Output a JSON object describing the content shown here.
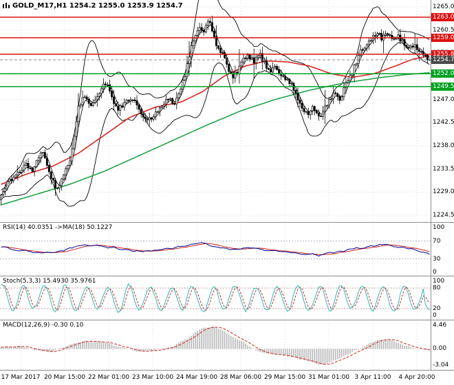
{
  "header": {
    "title": "GOLD_M17,H1 1254.2 1255.0 1253.9 1254.7",
    "symbol": "GOLD_M17",
    "period": "H1"
  },
  "palette": {
    "background": "#ffffff",
    "grid": "#d9d9d9",
    "candle": "#000000",
    "band": "#000000",
    "ma_fast": "#d92222",
    "ma_slow": "#1fa348",
    "resistance": "#dd1111",
    "support": "#00a020",
    "current_badge": "#4a4a4a",
    "rsi_line": "#00008b",
    "rsi_ma": "#cc2222",
    "rsi_level": "#b4b4c8",
    "stoch_k": "#2fb5b5",
    "stoch_d": "#cc2222",
    "stoch_level": "#cc9999",
    "macd_hist": "#bdbdbd",
    "macd_signal": "#cc2222",
    "separator": "#8a8a8a",
    "axis_text": "#000000"
  },
  "chart_data": {
    "type": "candlestick",
    "title": "GOLD_M17,H1",
    "symbol": "GOLD_M17",
    "period": "H1",
    "ohlc": {
      "open": 1254.2,
      "high": 1255.0,
      "low": 1253.9,
      "close": 1254.7
    },
    "y_axis": {
      "ticks": [
        1265.0,
        1260.5,
        1256.0,
        1251.5,
        1247.0,
        1242.5,
        1238.0,
        1233.5,
        1229.0,
        1224.5
      ]
    },
    "x_axis": {
      "labels": [
        "17 Mar 2017",
        "20 Mar 15:00",
        "22 Mar 01:00",
        "23 Mar 10:00",
        "24 Mar 19:00",
        "28 Mar 06:00",
        "29 Mar 15:00",
        "31 Mar 01:00",
        "3 Apr 11:00",
        "4 Apr 20:00"
      ]
    },
    "levels": {
      "resistance": [
        1263.0,
        1259.0,
        1255.8
      ],
      "support": [
        1252.0,
        1249.5
      ],
      "current_price": 1254.7
    },
    "candles": 206,
    "price_anchors": [
      [
        0.0,
        1228.0
      ],
      [
        0.01,
        1230.0
      ],
      [
        0.022,
        1231.5
      ],
      [
        0.035,
        1232.5
      ],
      [
        0.048,
        1233.5
      ],
      [
        0.06,
        1234.5
      ],
      [
        0.072,
        1233.0
      ],
      [
        0.085,
        1235.5
      ],
      [
        0.095,
        1237.0
      ],
      [
        0.105,
        1235.0
      ],
      [
        0.118,
        1231.5
      ],
      [
        0.13,
        1229.8
      ],
      [
        0.14,
        1231.0
      ],
      [
        0.152,
        1233.5
      ],
      [
        0.163,
        1236.0
      ],
      [
        0.172,
        1241.0
      ],
      [
        0.182,
        1246.0
      ],
      [
        0.195,
        1247.5
      ],
      [
        0.208,
        1246.0
      ],
      [
        0.22,
        1247.0
      ],
      [
        0.232,
        1249.0
      ],
      [
        0.243,
        1250.5
      ],
      [
        0.252,
        1249.0
      ],
      [
        0.262,
        1246.5
      ],
      [
        0.275,
        1245.0
      ],
      [
        0.29,
        1246.5
      ],
      [
        0.305,
        1247.5
      ],
      [
        0.318,
        1246.0
      ],
      [
        0.33,
        1244.0
      ],
      [
        0.342,
        1242.8
      ],
      [
        0.355,
        1244.0
      ],
      [
        0.368,
        1245.0
      ],
      [
        0.38,
        1246.5
      ],
      [
        0.392,
        1247.0
      ],
      [
        0.405,
        1246.0
      ],
      [
        0.418,
        1248.5
      ],
      [
        0.43,
        1252.0
      ],
      [
        0.442,
        1256.5
      ],
      [
        0.452,
        1259.5
      ],
      [
        0.462,
        1261.5
      ],
      [
        0.472,
        1260.0
      ],
      [
        0.482,
        1262.8
      ],
      [
        0.492,
        1260.5
      ],
      [
        0.502,
        1258.0
      ],
      [
        0.515,
        1256.0
      ],
      [
        0.528,
        1253.5
      ],
      [
        0.54,
        1251.5
      ],
      [
        0.552,
        1252.5
      ],
      [
        0.565,
        1255.0
      ],
      [
        0.578,
        1255.5
      ],
      [
        0.59,
        1254.5
      ],
      [
        0.602,
        1256.0
      ],
      [
        0.615,
        1254.0
      ],
      [
        0.628,
        1252.5
      ],
      [
        0.64,
        1253.5
      ],
      [
        0.652,
        1252.0
      ],
      [
        0.665,
        1251.0
      ],
      [
        0.678,
        1250.0
      ],
      [
        0.69,
        1247.5
      ],
      [
        0.702,
        1245.0
      ],
      [
        0.715,
        1244.0
      ],
      [
        0.728,
        1246.0
      ],
      [
        0.74,
        1243.5
      ],
      [
        0.752,
        1244.5
      ],
      [
        0.765,
        1247.0
      ],
      [
        0.778,
        1248.0
      ],
      [
        0.79,
        1246.5
      ],
      [
        0.802,
        1249.5
      ],
      [
        0.815,
        1251.5
      ],
      [
        0.828,
        1254.0
      ],
      [
        0.84,
        1256.5
      ],
      [
        0.852,
        1257.5
      ],
      [
        0.862,
        1258.5
      ],
      [
        0.875,
        1260.0
      ],
      [
        0.888,
        1259.0
      ],
      [
        0.9,
        1260.5
      ],
      [
        0.912,
        1258.5
      ],
      [
        0.925,
        1259.5
      ],
      [
        0.938,
        1258.0
      ],
      [
        0.95,
        1257.0
      ],
      [
        0.962,
        1257.5
      ],
      [
        0.975,
        1256.5
      ],
      [
        0.988,
        1255.5
      ],
      [
        1.0,
        1254.7
      ]
    ],
    "ma_fast_anchors": [
      [
        0,
        1230.5
      ],
      [
        0.06,
        1232.5
      ],
      [
        0.12,
        1234.0
      ],
      [
        0.18,
        1236.5
      ],
      [
        0.24,
        1240.0
      ],
      [
        0.3,
        1243.5
      ],
      [
        0.36,
        1245.5
      ],
      [
        0.42,
        1246.5
      ],
      [
        0.47,
        1248.5
      ],
      [
        0.52,
        1251.5
      ],
      [
        0.57,
        1253.5
      ],
      [
        0.62,
        1254.5
      ],
      [
        0.67,
        1254.3
      ],
      [
        0.72,
        1253.5
      ],
      [
        0.77,
        1252.0
      ],
      [
        0.82,
        1251.3
      ],
      [
        0.87,
        1252.0
      ],
      [
        0.92,
        1253.5
      ],
      [
        0.96,
        1254.8
      ],
      [
        1.0,
        1255.5
      ]
    ],
    "ma_slow_anchors": [
      [
        0,
        1226.5
      ],
      [
        0.08,
        1228.5
      ],
      [
        0.16,
        1230.5
      ],
      [
        0.24,
        1233.0
      ],
      [
        0.32,
        1236.0
      ],
      [
        0.4,
        1239.0
      ],
      [
        0.48,
        1242.0
      ],
      [
        0.56,
        1244.8
      ],
      [
        0.64,
        1247.0
      ],
      [
        0.72,
        1248.8
      ],
      [
        0.8,
        1250.2
      ],
      [
        0.88,
        1251.2
      ],
      [
        0.94,
        1251.8
      ],
      [
        1.0,
        1252.2
      ]
    ],
    "panels": {
      "rsi": {
        "label": "RSI(14) 40.0351 ->MA(18) 50.1227",
        "name": "RSI(14)",
        "value": 40.0351,
        "ma_name": "MA(18)",
        "ma_value": 50.1227,
        "ticks": [
          100,
          70,
          30,
          0
        ],
        "levels": [
          70,
          30
        ],
        "range": [
          0,
          100
        ],
        "anchors": [
          [
            0,
            56
          ],
          [
            0.04,
            50
          ],
          [
            0.08,
            46
          ],
          [
            0.12,
            42
          ],
          [
            0.16,
            55
          ],
          [
            0.2,
            62
          ],
          [
            0.24,
            58
          ],
          [
            0.28,
            52
          ],
          [
            0.32,
            46
          ],
          [
            0.36,
            50
          ],
          [
            0.4,
            55
          ],
          [
            0.44,
            62
          ],
          [
            0.47,
            66
          ],
          [
            0.5,
            58
          ],
          [
            0.54,
            50
          ],
          [
            0.58,
            54
          ],
          [
            0.62,
            50
          ],
          [
            0.66,
            45
          ],
          [
            0.7,
            41
          ],
          [
            0.74,
            38
          ],
          [
            0.78,
            46
          ],
          [
            0.82,
            52
          ],
          [
            0.86,
            57
          ],
          [
            0.9,
            62
          ],
          [
            0.93,
            56
          ],
          [
            0.96,
            50
          ],
          [
            1.0,
            40
          ]
        ]
      },
      "stoch": {
        "label": "Stoch(5,3,3) 15.4930 35.9761",
        "name": "Stoch(5,3,3)",
        "k_value": 15.493,
        "d_value": 35.9761,
        "ticks": [
          100,
          80,
          20,
          0
        ],
        "levels": [
          80,
          20
        ],
        "range": [
          0,
          100
        ],
        "frequency": 0.62,
        "amplitude": 40,
        "noise": 24
      },
      "macd": {
        "label": "MACD(12,26,9) -0.30 0.10",
        "name": "MACD(12,26,9)",
        "macd_value": -0.3,
        "signal_value": 0.1,
        "ticks": [
          4.46,
          0.0,
          -3.04
        ],
        "range": [
          -3.04,
          4.46
        ],
        "anchors": [
          [
            0,
            0.3
          ],
          [
            0.04,
            0.6
          ],
          [
            0.08,
            -0.2
          ],
          [
            0.12,
            -0.5
          ],
          [
            0.16,
            0.8
          ],
          [
            0.2,
            1.6
          ],
          [
            0.24,
            1.2
          ],
          [
            0.28,
            0.3
          ],
          [
            0.32,
            -0.6
          ],
          [
            0.36,
            -0.3
          ],
          [
            0.4,
            0.5
          ],
          [
            0.44,
            2.2
          ],
          [
            0.47,
            3.9
          ],
          [
            0.5,
            4.3
          ],
          [
            0.53,
            2.8
          ],
          [
            0.57,
            1.0
          ],
          [
            0.6,
            -0.5
          ],
          [
            0.64,
            -1.0
          ],
          [
            0.68,
            -1.6
          ],
          [
            0.72,
            -2.4
          ],
          [
            0.75,
            -3.0
          ],
          [
            0.79,
            -1.8
          ],
          [
            0.83,
            -0.2
          ],
          [
            0.87,
            1.4
          ],
          [
            0.9,
            2.0
          ],
          [
            0.93,
            1.0
          ],
          [
            0.96,
            0.2
          ],
          [
            1.0,
            -0.3
          ]
        ]
      }
    }
  }
}
